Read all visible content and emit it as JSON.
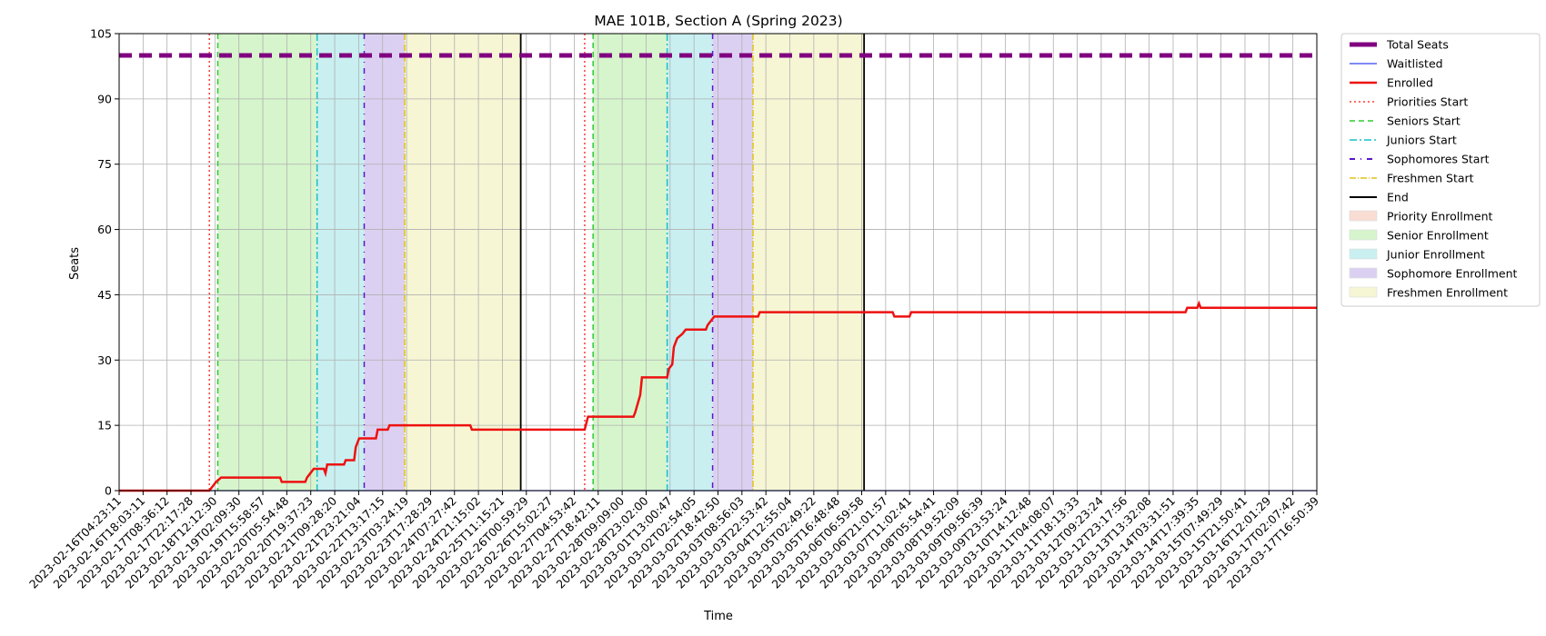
{
  "chart_data": {
    "type": "line",
    "title": "MAE 101B, Section A (Spring 2023)",
    "xlabel": "Time",
    "ylabel": "Seats",
    "ylim": [
      0,
      105
    ],
    "yticks": [
      0,
      15,
      30,
      45,
      60,
      75,
      90,
      105
    ],
    "grid": true,
    "legend_placement": "outside-right",
    "x_range": [
      "2023-02-16T04:23:11",
      "2023-03-17T20:00:00"
    ],
    "xtick_labels": [
      "2023-02-16T04:23:11",
      "2023-02-16T18:03:11",
      "2023-02-17T08:36:12",
      "2023-02-17T22:17:28",
      "2023-02-18T12:12:30",
      "2023-02-19T02:09:30",
      "2023-02-19T15:58:57",
      "2023-02-20T05:54:48",
      "2023-02-20T19:37:23",
      "2023-02-21T09:28:20",
      "2023-02-21T23:21:04",
      "2023-02-22T13:17:15",
      "2023-02-23T03:24:19",
      "2023-02-23T17:28:29",
      "2023-02-24T07:27:42",
      "2023-02-24T21:15:02",
      "2023-02-25T11:15:21",
      "2023-02-26T00:59:29",
      "2023-02-26T15:02:27",
      "2023-02-27T04:53:42",
      "2023-02-27T18:42:11",
      "2023-02-28T09:09:00",
      "2023-02-28T23:02:00",
      "2023-03-01T13:00:47",
      "2023-03-02T02:54:05",
      "2023-03-02T18:42:50",
      "2023-03-03T08:56:03",
      "2023-03-03T22:53:42",
      "2023-03-04T12:55:04",
      "2023-03-05T02:49:22",
      "2023-03-05T16:48:48",
      "2023-03-06T06:59:58",
      "2023-03-06T21:01:57",
      "2023-03-07T11:02:41",
      "2023-03-08T05:54:41",
      "2023-03-08T19:52:09",
      "2023-03-09T09:56:39",
      "2023-03-09T23:53:24",
      "2023-03-10T14:12:48",
      "2023-03-11T04:08:07",
      "2023-03-11T18:13:33",
      "2023-03-12T09:23:24",
      "2023-03-12T23:17:56",
      "2023-03-13T13:32:08",
      "2023-03-14T03:31:51",
      "2023-03-14T17:39:35",
      "2023-03-15T07:49:29",
      "2023-03-15T21:50:41",
      "2023-03-16T12:01:29",
      "2023-03-17T02:07:42",
      "2023-03-17T16:50:39"
    ],
    "shaded_periods": [
      {
        "name": "Senior Enrollment",
        "start": "2023-02-18T15:00:00",
        "end": "2023-02-21T02:00:00",
        "color": "#d6f5cc"
      },
      {
        "name": "Junior Enrollment",
        "start": "2023-02-21T02:00:00",
        "end": "2023-02-22T06:00:00",
        "color": "#c9eff1"
      },
      {
        "name": "Sophomore Enrollment",
        "start": "2023-02-22T06:00:00",
        "end": "2023-02-23T06:00:00",
        "color": "#dcd0f2"
      },
      {
        "name": "Freshmen Enrollment",
        "start": "2023-02-23T06:00:00",
        "end": "2023-02-26T03:00:00",
        "color": "#f6f6d5"
      },
      {
        "name": "Senior Enrollment",
        "start": "2023-02-27T22:00:00",
        "end": "2023-03-01T18:00:00",
        "color": "#d6f5cc"
      },
      {
        "name": "Junior Enrollment",
        "start": "2023-03-01T18:00:00",
        "end": "2023-03-02T21:00:00",
        "color": "#c9eff1"
      },
      {
        "name": "Sophomore Enrollment",
        "start": "2023-03-02T21:00:00",
        "end": "2023-03-03T21:00:00",
        "color": "#dcd0f2"
      },
      {
        "name": "Freshmen Enrollment",
        "start": "2023-03-03T21:00:00",
        "end": "2023-03-06T15:00:00",
        "color": "#f6f6d5"
      }
    ],
    "markers": [
      {
        "name": "Priorities Start",
        "time": "2023-02-18T10:00:00",
        "color": "#ff3b30",
        "dash": "2 3"
      },
      {
        "name": "Seniors Start",
        "time": "2023-02-18T15:00:00",
        "color": "#2ecc2e",
        "dash": "6 4"
      },
      {
        "name": "Juniors Start",
        "time": "2023-02-21T02:00:00",
        "color": "#19c0c8",
        "dash": "8 3 2 3"
      },
      {
        "name": "Sophomores Start",
        "time": "2023-02-22T06:00:00",
        "color": "#5a17c8",
        "dash": "6 6 1 6"
      },
      {
        "name": "Freshmen Start",
        "time": "2023-02-23T06:00:00",
        "color": "#e2c21a",
        "dash": "7 2 1 2"
      },
      {
        "name": "End",
        "time": "2023-02-26T03:00:00",
        "color": "#000000",
        "dash": ""
      },
      {
        "name": "Priorities Start",
        "time": "2023-02-27T17:00:00",
        "color": "#ff3b30",
        "dash": "2 3"
      },
      {
        "name": "Seniors Start",
        "time": "2023-02-27T22:00:00",
        "color": "#2ecc2e",
        "dash": "6 4"
      },
      {
        "name": "Juniors Start",
        "time": "2023-03-01T18:00:00",
        "color": "#19c0c8",
        "dash": "8 3 2 3"
      },
      {
        "name": "Sophomores Start",
        "time": "2023-03-02T21:00:00",
        "color": "#5a17c8",
        "dash": "6 6 1 6"
      },
      {
        "name": "Freshmen Start",
        "time": "2023-03-03T21:00:00",
        "color": "#e2c21a",
        "dash": "7 2 1 2"
      },
      {
        "name": "End",
        "time": "2023-03-06T15:00:00",
        "color": "#000000",
        "dash": ""
      }
    ],
    "series": [
      {
        "name": "Total Seats",
        "color": "#800080",
        "dash": "14 8",
        "points": [
          [
            "2023-02-16T04:23:11",
            100
          ],
          [
            "2023-03-17T20:00:00",
            100
          ]
        ]
      },
      {
        "name": "Waitlisted",
        "color": "#3344ee",
        "dash": "",
        "points": [
          [
            "2023-02-16T04:23:11",
            0
          ],
          [
            "2023-03-17T20:00:00",
            0
          ]
        ]
      },
      {
        "name": "Enrolled",
        "color": "#ee1111",
        "dash": "",
        "points": [
          [
            "2023-02-16T04:23:11",
            0
          ],
          [
            "2023-02-18T10:00:00",
            0
          ],
          [
            "2023-02-18T14:00:00",
            2
          ],
          [
            "2023-02-18T17:00:00",
            3
          ],
          [
            "2023-02-20T04:00:00",
            3
          ],
          [
            "2023-02-20T05:00:00",
            2
          ],
          [
            "2023-02-20T19:00:00",
            2
          ],
          [
            "2023-02-20T20:00:00",
            3
          ],
          [
            "2023-02-20T22:00:00",
            4
          ],
          [
            "2023-02-21T00:00:00",
            5
          ],
          [
            "2023-02-21T06:00:00",
            5
          ],
          [
            "2023-02-21T07:00:00",
            4
          ],
          [
            "2023-02-21T08:00:00",
            6
          ],
          [
            "2023-02-21T18:00:00",
            6
          ],
          [
            "2023-02-21T19:00:00",
            7
          ],
          [
            "2023-02-22T00:00:00",
            7
          ],
          [
            "2023-02-22T01:00:00",
            10
          ],
          [
            "2023-02-22T03:00:00",
            12
          ],
          [
            "2023-02-22T13:00:00",
            12
          ],
          [
            "2023-02-22T14:00:00",
            14
          ],
          [
            "2023-02-22T20:00:00",
            14
          ],
          [
            "2023-02-22T21:00:00",
            15
          ],
          [
            "2023-02-24T21:00:00",
            15
          ],
          [
            "2023-02-24T22:00:00",
            14
          ],
          [
            "2023-02-27T17:00:00",
            14
          ],
          [
            "2023-02-27T19:00:00",
            17
          ],
          [
            "2023-02-28T22:00:00",
            17
          ],
          [
            "2023-02-28T23:00:00",
            18
          ],
          [
            "2023-03-01T02:00:00",
            22
          ],
          [
            "2023-03-01T03:00:00",
            26
          ],
          [
            "2023-03-01T18:00:00",
            26
          ],
          [
            "2023-03-01T19:00:00",
            28
          ],
          [
            "2023-03-01T21:00:00",
            29
          ],
          [
            "2023-03-01T22:00:00",
            33
          ],
          [
            "2023-03-02T00:00:00",
            35
          ],
          [
            "2023-03-02T03:00:00",
            36
          ],
          [
            "2023-03-02T05:00:00",
            37
          ],
          [
            "2023-03-02T17:00:00",
            37
          ],
          [
            "2023-03-02T18:00:00",
            38
          ],
          [
            "2023-03-02T22:00:00",
            40
          ],
          [
            "2023-03-04T00:00:00",
            40
          ],
          [
            "2023-03-04T01:00:00",
            41
          ],
          [
            "2023-03-07T08:00:00",
            41
          ],
          [
            "2023-03-07T09:00:00",
            40
          ],
          [
            "2023-03-07T18:00:00",
            40
          ],
          [
            "2023-03-07T19:00:00",
            41
          ],
          [
            "2023-03-14T14:00:00",
            41
          ],
          [
            "2023-03-14T15:00:00",
            42
          ],
          [
            "2023-03-14T21:00:00",
            42
          ],
          [
            "2023-03-14T22:00:00",
            43
          ],
          [
            "2023-03-14T23:00:00",
            42
          ],
          [
            "2023-03-17T20:00:00",
            42
          ]
        ]
      }
    ],
    "legend": [
      {
        "label": "Total Seats",
        "kind": "line",
        "color": "#800080",
        "width": 5,
        "dash": ""
      },
      {
        "label": "Waitlisted",
        "kind": "line",
        "color": "#3344ee",
        "width": 1.3,
        "dash": ""
      },
      {
        "label": "Enrolled",
        "kind": "line",
        "color": "#ee1111",
        "width": 2.5,
        "dash": ""
      },
      {
        "label": "Priorities Start",
        "kind": "line",
        "color": "#ff3b30",
        "width": 1.5,
        "dash": "2 3"
      },
      {
        "label": "Seniors Start",
        "kind": "line",
        "color": "#2ecc2e",
        "width": 1.5,
        "dash": "6 4"
      },
      {
        "label": "Juniors Start",
        "kind": "line",
        "color": "#19c0c8",
        "width": 1.5,
        "dash": "8 3 2 3"
      },
      {
        "label": "Sophomores Start",
        "kind": "line",
        "color": "#5a17c8",
        "width": 2,
        "dash": "6 6 1 6"
      },
      {
        "label": "Freshmen Start",
        "kind": "line",
        "color": "#e2c21a",
        "width": 1.5,
        "dash": "7 2 1 2"
      },
      {
        "label": "End",
        "kind": "line",
        "color": "#000000",
        "width": 2,
        "dash": ""
      },
      {
        "label": "Priority Enrollment",
        "kind": "patch",
        "color": "#f9ddd3"
      },
      {
        "label": "Senior Enrollment",
        "kind": "patch",
        "color": "#d6f5cc"
      },
      {
        "label": "Junior Enrollment",
        "kind": "patch",
        "color": "#c9eff1"
      },
      {
        "label": "Sophomore Enrollment",
        "kind": "patch",
        "color": "#dcd0f2"
      },
      {
        "label": "Freshmen Enrollment",
        "kind": "patch",
        "color": "#f6f6d5"
      }
    ]
  }
}
